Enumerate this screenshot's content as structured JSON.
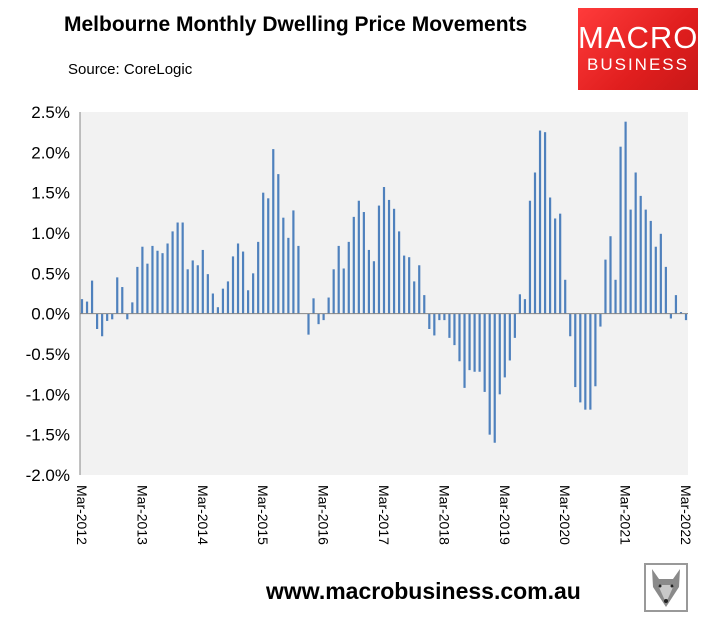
{
  "header": {
    "title": "Melbourne Monthly Dwelling Price Movements",
    "source": "Source: CoreLogic"
  },
  "logo": {
    "line1": "MACRO",
    "line2": "BUSINESS",
    "color": "#e82424"
  },
  "footer": {
    "url": "www.macrobusiness.com.au"
  },
  "chart_data": {
    "type": "bar",
    "title": "Melbourne Monthly Dwelling Price Movements",
    "xlabel": "",
    "ylabel": "",
    "ylim": [
      -2.0,
      2.5
    ],
    "y_ticks": [
      "2.5%",
      "2.0%",
      "1.5%",
      "1.0%",
      "0.5%",
      "0.0%",
      "-0.5%",
      "-1.0%",
      "-1.5%",
      "-2.0%"
    ],
    "y_tick_values": [
      2.5,
      2.0,
      1.5,
      1.0,
      0.5,
      0.0,
      -0.5,
      -1.0,
      -1.5,
      -2.0
    ],
    "x_start": "Mar-2012",
    "x_end": "Mar-2022",
    "frequency": "monthly",
    "x_ticks": [
      "Mar-2012",
      "Mar-2013",
      "Mar-2014",
      "Mar-2015",
      "Mar-2016",
      "Mar-2017",
      "Mar-2018",
      "Mar-2019",
      "Mar-2020",
      "Mar-2021",
      "Mar-2022"
    ],
    "grid": false,
    "bar_color": "#4f81bd",
    "plot_background": "#f2f2f2",
    "values": [
      0.18,
      0.15,
      0.41,
      -0.19,
      -0.28,
      -0.09,
      -0.07,
      0.45,
      0.33,
      -0.07,
      0.14,
      0.58,
      0.83,
      0.62,
      0.84,
      0.78,
      0.75,
      0.87,
      1.02,
      1.13,
      1.13,
      0.55,
      0.66,
      0.6,
      0.79,
      0.49,
      0.25,
      0.08,
      0.31,
      0.4,
      0.71,
      0.87,
      0.77,
      0.29,
      0.5,
      0.89,
      1.5,
      1.43,
      2.04,
      1.73,
      1.19,
      0.94,
      1.28,
      0.84,
      0.0,
      -0.26,
      0.19,
      -0.13,
      -0.08,
      0.2,
      0.55,
      0.84,
      0.56,
      0.89,
      1.2,
      1.4,
      1.26,
      0.79,
      0.65,
      1.34,
      1.57,
      1.41,
      1.3,
      1.02,
      0.72,
      0.7,
      0.4,
      0.6,
      0.23,
      -0.19,
      -0.27,
      -0.08,
      -0.08,
      -0.3,
      -0.39,
      -0.59,
      -0.92,
      -0.7,
      -0.72,
      -0.72,
      -0.97,
      -1.5,
      -1.6,
      -1.0,
      -0.79,
      -0.58,
      -0.3,
      0.24,
      0.18,
      1.4,
      1.75,
      2.27,
      2.25,
      1.44,
      1.18,
      1.24,
      0.42,
      -0.28,
      -0.91,
      -1.1,
      -1.19,
      -1.19,
      -0.9,
      -0.16,
      0.67,
      0.96,
      0.42,
      2.07,
      2.38,
      1.29,
      1.75,
      1.46,
      1.29,
      1.15,
      0.83,
      0.99,
      0.58,
      -0.06,
      0.23,
      0.02,
      -0.08
    ]
  }
}
